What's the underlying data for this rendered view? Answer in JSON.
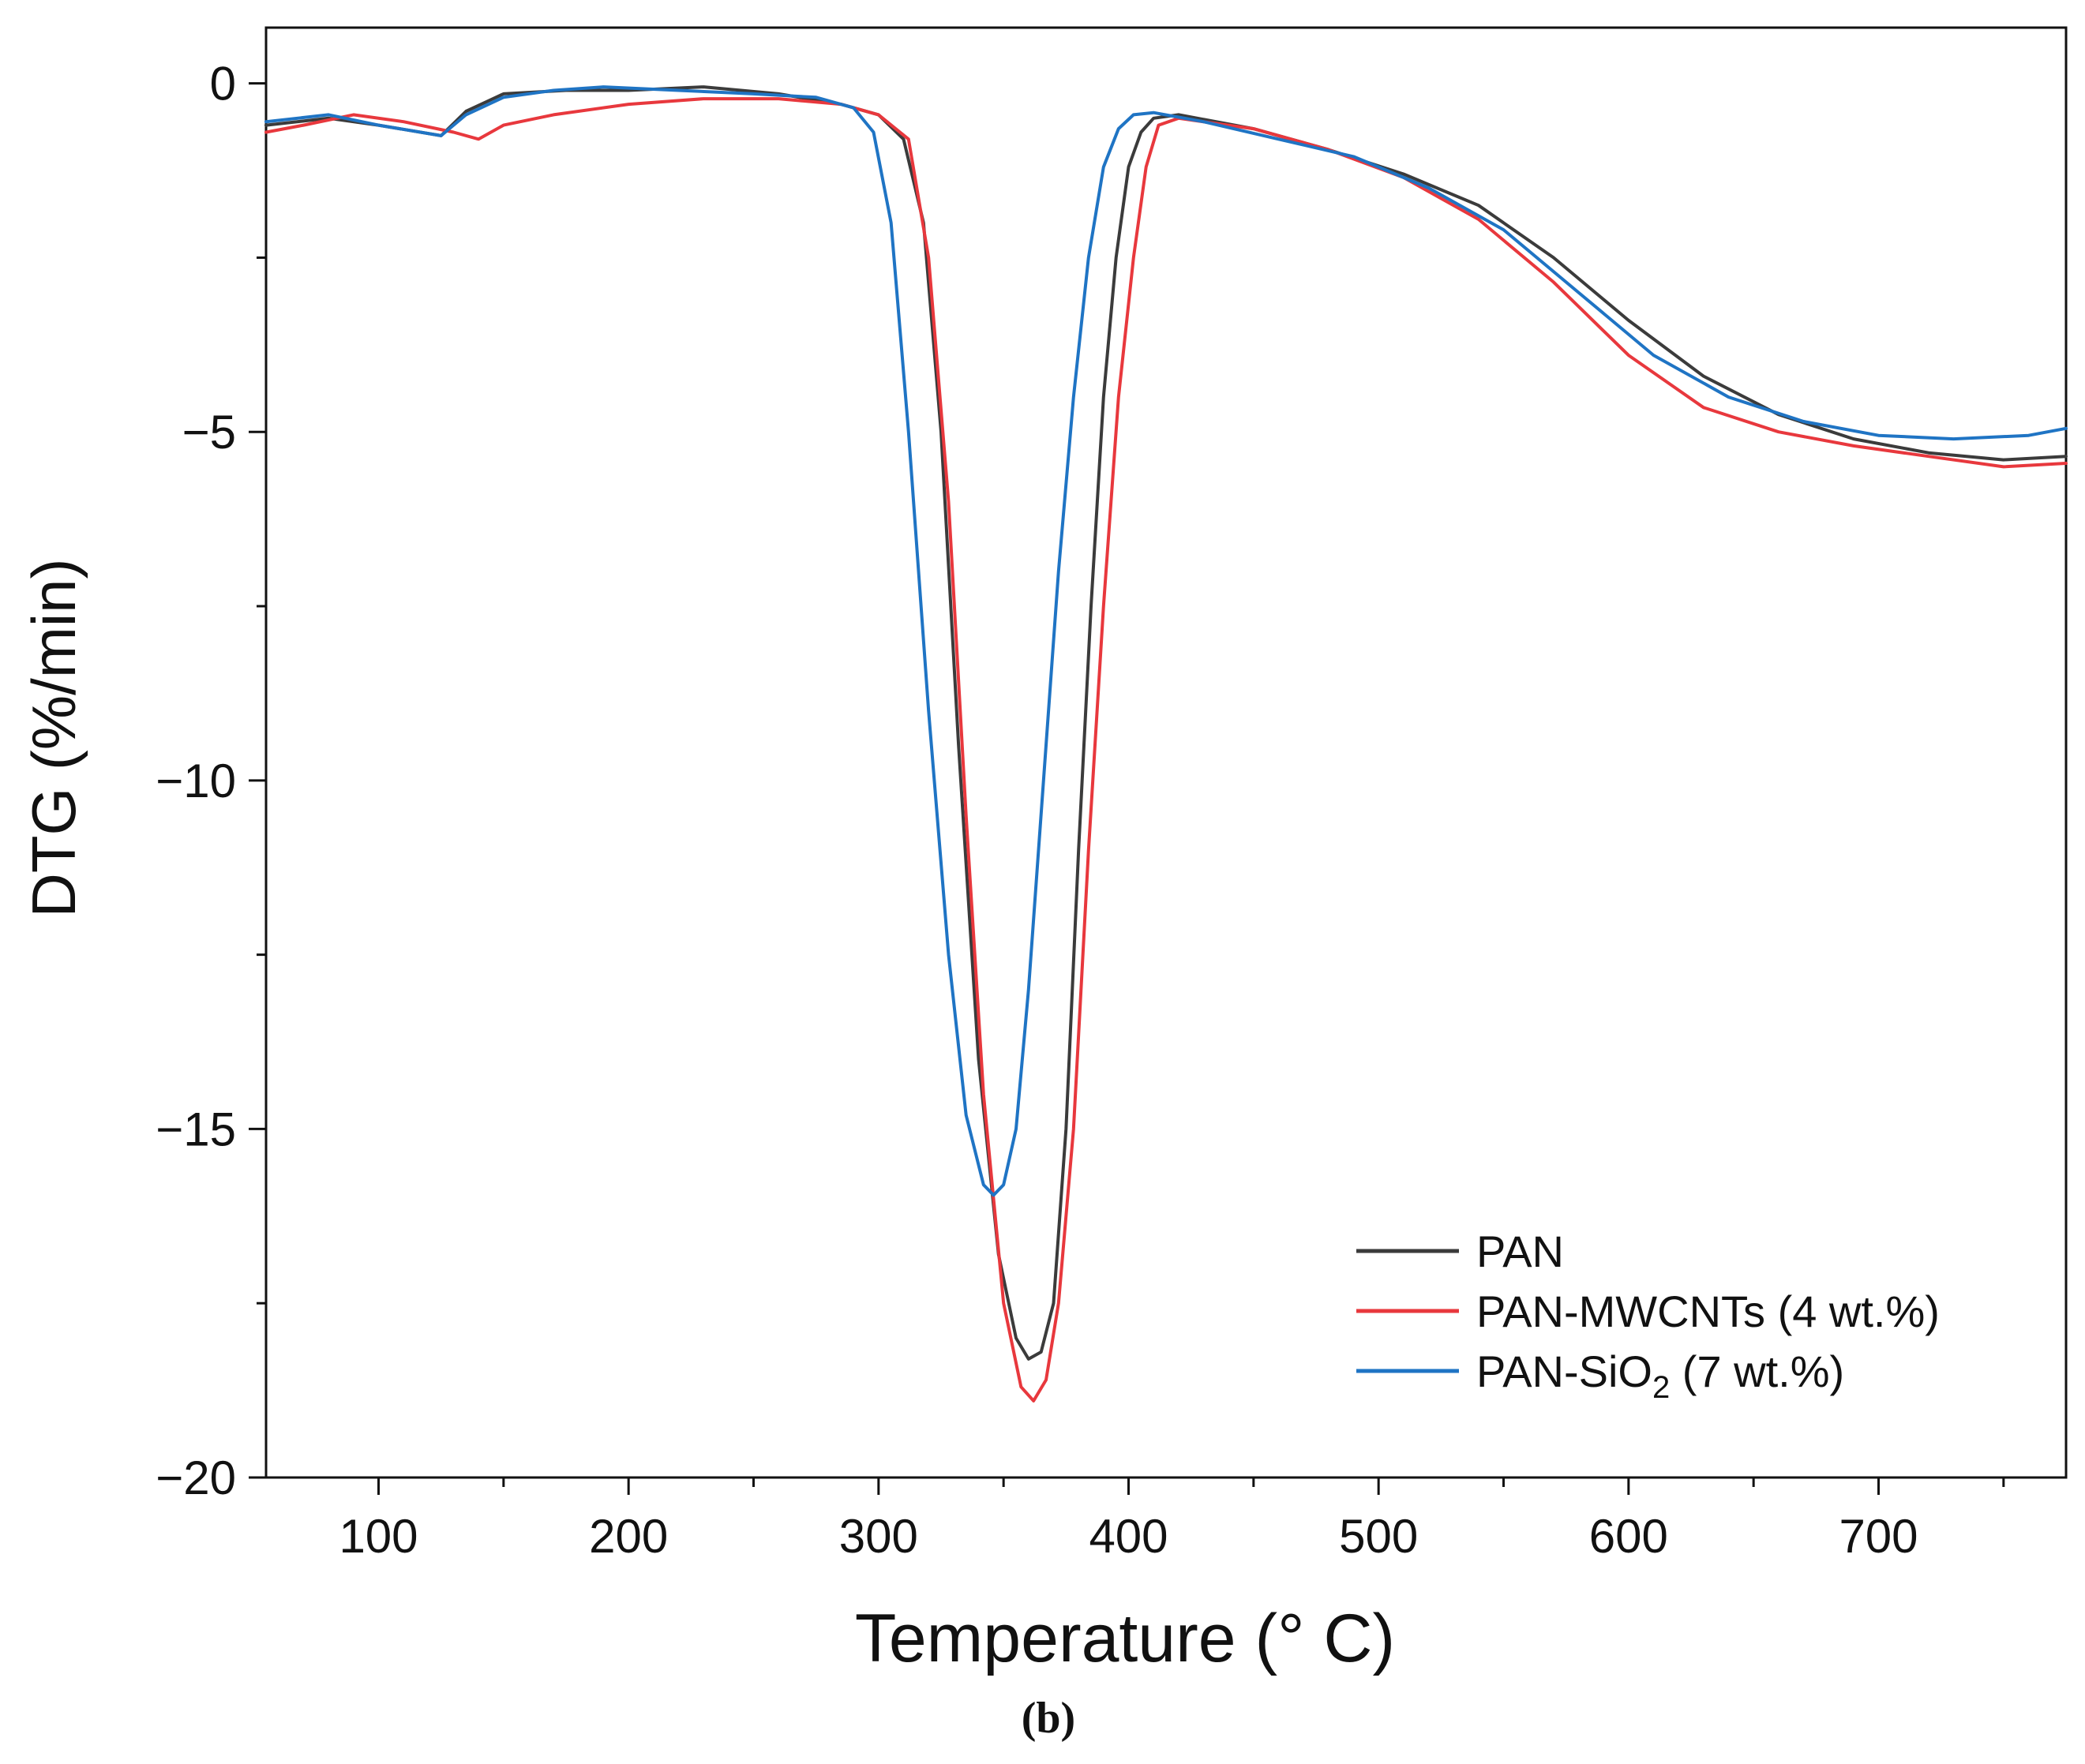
{
  "figure_caption": "(b)",
  "chart_data": {
    "type": "line",
    "title": "",
    "xlabel": "Temperature (° C)",
    "ylabel": "DTG (%/min)",
    "xlim": [
      55,
      775
    ],
    "ylim": [
      -20,
      0.8
    ],
    "x_ticks": [
      100,
      200,
      300,
      400,
      500,
      600,
      700
    ],
    "x_tick_labels": [
      "100",
      "200",
      "300",
      "400",
      "500",
      "600",
      "700"
    ],
    "y_ticks": [
      0,
      -5,
      -10,
      -15,
      -20
    ],
    "y_tick_labels": [
      "0",
      "−5",
      "−10",
      "−15",
      "−20"
    ],
    "legend_position": "bottom-right",
    "series": [
      {
        "name": "PAN",
        "legend_main": "PAN",
        "legend_sub": "",
        "legend_tail": "",
        "color": "#3b3b3b",
        "points": [
          [
            55,
            -0.6
          ],
          [
            80,
            -0.5
          ],
          [
            100,
            -0.6
          ],
          [
            125,
            -0.75
          ],
          [
            135,
            -0.4
          ],
          [
            150,
            -0.15
          ],
          [
            175,
            -0.1
          ],
          [
            200,
            -0.1
          ],
          [
            230,
            -0.05
          ],
          [
            260,
            -0.15
          ],
          [
            285,
            -0.3
          ],
          [
            300,
            -0.45
          ],
          [
            310,
            -0.8
          ],
          [
            318,
            -2.0
          ],
          [
            325,
            -5.0
          ],
          [
            332,
            -9.5
          ],
          [
            340,
            -14.0
          ],
          [
            348,
            -16.8
          ],
          [
            355,
            -18.0
          ],
          [
            360,
            -18.3
          ],
          [
            365,
            -18.2
          ],
          [
            370,
            -17.5
          ],
          [
            375,
            -15.0
          ],
          [
            380,
            -11.0
          ],
          [
            385,
            -7.5
          ],
          [
            390,
            -4.5
          ],
          [
            395,
            -2.5
          ],
          [
            400,
            -1.2
          ],
          [
            405,
            -0.7
          ],
          [
            410,
            -0.5
          ],
          [
            420,
            -0.45
          ],
          [
            450,
            -0.65
          ],
          [
            480,
            -0.95
          ],
          [
            510,
            -1.3
          ],
          [
            540,
            -1.75
          ],
          [
            570,
            -2.5
          ],
          [
            600,
            -3.4
          ],
          [
            630,
            -4.2
          ],
          [
            660,
            -4.75
          ],
          [
            690,
            -5.1
          ],
          [
            720,
            -5.3
          ],
          [
            750,
            -5.4
          ],
          [
            775,
            -5.35
          ]
        ]
      },
      {
        "name": "PAN-MWCNTs (4 wt.%)",
        "legend_main": "PAN-MWCNTs (4 wt.%)",
        "legend_sub": "",
        "legend_tail": "",
        "color": "#e8383d",
        "points": [
          [
            55,
            -0.7
          ],
          [
            70,
            -0.6
          ],
          [
            90,
            -0.45
          ],
          [
            110,
            -0.55
          ],
          [
            130,
            -0.7
          ],
          [
            140,
            -0.8
          ],
          [
            150,
            -0.6
          ],
          [
            170,
            -0.45
          ],
          [
            200,
            -0.3
          ],
          [
            230,
            -0.22
          ],
          [
            260,
            -0.22
          ],
          [
            285,
            -0.3
          ],
          [
            300,
            -0.45
          ],
          [
            312,
            -0.8
          ],
          [
            320,
            -2.5
          ],
          [
            328,
            -6.0
          ],
          [
            335,
            -10.5
          ],
          [
            342,
            -14.5
          ],
          [
            350,
            -17.5
          ],
          [
            357,
            -18.7
          ],
          [
            362,
            -18.9
          ],
          [
            367,
            -18.6
          ],
          [
            372,
            -17.5
          ],
          [
            378,
            -15.0
          ],
          [
            384,
            -11.0
          ],
          [
            390,
            -7.5
          ],
          [
            396,
            -4.5
          ],
          [
            402,
            -2.5
          ],
          [
            407,
            -1.2
          ],
          [
            412,
            -0.6
          ],
          [
            420,
            -0.5
          ],
          [
            450,
            -0.65
          ],
          [
            480,
            -0.95
          ],
          [
            510,
            -1.35
          ],
          [
            540,
            -1.95
          ],
          [
            570,
            -2.85
          ],
          [
            600,
            -3.9
          ],
          [
            630,
            -4.65
          ],
          [
            660,
            -5.0
          ],
          [
            690,
            -5.2
          ],
          [
            720,
            -5.35
          ],
          [
            750,
            -5.5
          ],
          [
            775,
            -5.45
          ]
        ]
      },
      {
        "name": "PAN-SiO2 (7 wt.%)",
        "legend_main": "PAN-SiO",
        "legend_sub": "2",
        "legend_tail": " (7 wt.%)",
        "color": "#1f74c4",
        "points": [
          [
            55,
            -0.55
          ],
          [
            80,
            -0.45
          ],
          [
            100,
            -0.6
          ],
          [
            125,
            -0.75
          ],
          [
            135,
            -0.45
          ],
          [
            150,
            -0.2
          ],
          [
            170,
            -0.1
          ],
          [
            190,
            -0.05
          ],
          [
            220,
            -0.1
          ],
          [
            250,
            -0.15
          ],
          [
            275,
            -0.2
          ],
          [
            290,
            -0.35
          ],
          [
            298,
            -0.7
          ],
          [
            305,
            -2.0
          ],
          [
            312,
            -5.0
          ],
          [
            320,
            -9.0
          ],
          [
            328,
            -12.5
          ],
          [
            335,
            -14.8
          ],
          [
            342,
            -15.8
          ],
          [
            346,
            -15.95
          ],
          [
            350,
            -15.8
          ],
          [
            355,
            -15.0
          ],
          [
            360,
            -13.0
          ],
          [
            366,
            -10.0
          ],
          [
            372,
            -7.0
          ],
          [
            378,
            -4.5
          ],
          [
            384,
            -2.5
          ],
          [
            390,
            -1.2
          ],
          [
            396,
            -0.65
          ],
          [
            402,
            -0.45
          ],
          [
            410,
            -0.42
          ],
          [
            430,
            -0.55
          ],
          [
            460,
            -0.8
          ],
          [
            490,
            -1.05
          ],
          [
            520,
            -1.5
          ],
          [
            550,
            -2.1
          ],
          [
            580,
            -3.0
          ],
          [
            610,
            -3.9
          ],
          [
            640,
            -4.5
          ],
          [
            670,
            -4.85
          ],
          [
            700,
            -5.05
          ],
          [
            730,
            -5.1
          ],
          [
            760,
            -5.05
          ],
          [
            775,
            -4.95
          ]
        ]
      }
    ]
  }
}
